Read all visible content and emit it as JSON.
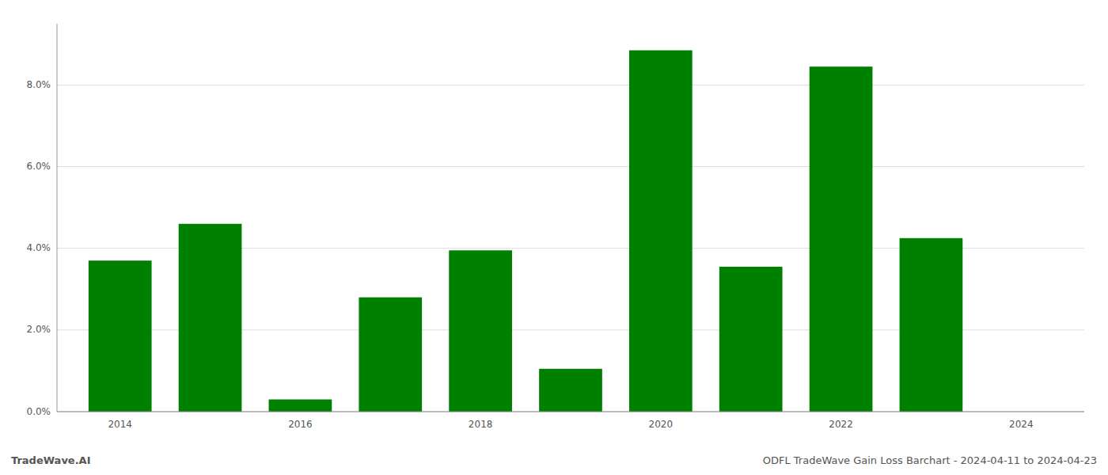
{
  "chart_data": {
    "type": "bar",
    "title": "ODFL TradeWave Gain Loss Barchart - 2024-04-11 to 2024-04-23",
    "annotations": [
      "TradeWave.AI"
    ],
    "x": [
      2014,
      2015,
      2016,
      2017,
      2018,
      2019,
      2020,
      2021,
      2022,
      2023
    ],
    "values": [
      0.037,
      0.046,
      0.003,
      0.028,
      0.0395,
      0.0105,
      0.0885,
      0.0355,
      0.0845,
      0.0425
    ],
    "color": "#008000",
    "xlim": [
      2013.3,
      2024.7
    ],
    "xticks": [
      2014,
      2016,
      2018,
      2020,
      2022,
      2024
    ],
    "ylim": [
      0,
      0.095
    ],
    "yticks": [
      {
        "value": 0.0,
        "label": "0.0%"
      },
      {
        "value": 0.02,
        "label": "2.0%"
      },
      {
        "value": 0.04,
        "label": "4.0%"
      },
      {
        "value": 0.06,
        "label": "6.0%"
      },
      {
        "value": 0.08,
        "label": "8.0%"
      }
    ],
    "grid": true
  }
}
